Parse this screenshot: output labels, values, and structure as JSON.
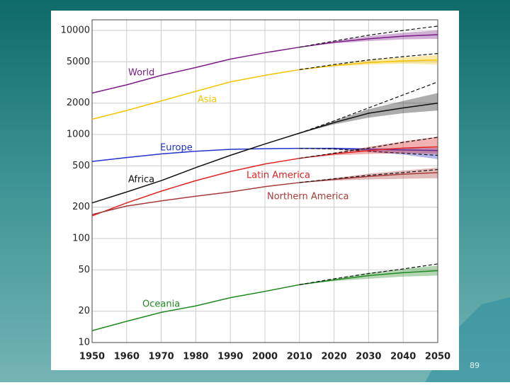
{
  "page_number": "89",
  "chart_data": {
    "type": "line",
    "log_y": true,
    "grid": true,
    "x": [
      1950,
      1960,
      1970,
      1980,
      1990,
      2000,
      2010,
      2020,
      2030,
      2040,
      2050
    ],
    "xlim": [
      1950,
      2050
    ],
    "xticks": [
      1950,
      1960,
      1970,
      1980,
      1990,
      2000,
      2010,
      2020,
      2030,
      2040,
      2050
    ],
    "ylim": [
      10,
      10000
    ],
    "yticks": [
      10,
      20,
      50,
      100,
      200,
      500,
      1000,
      2000,
      5000,
      10000
    ],
    "series": [
      {
        "name": "World",
        "color": "#7b1c86",
        "values": [
          2500,
          3000,
          3700,
          4400,
          5300,
          6100,
          6900,
          7700,
          8300,
          8800,
          9100
        ],
        "dashed": [
          null,
          null,
          null,
          null,
          null,
          null,
          6900,
          7900,
          9000,
          10000,
          11000
        ],
        "low": [
          null,
          null,
          null,
          null,
          null,
          null,
          6900,
          7500,
          7900,
          8200,
          8300
        ],
        "high": [
          null,
          null,
          null,
          null,
          null,
          null,
          6900,
          7900,
          8800,
          9500,
          10000
        ]
      },
      {
        "name": "Asia",
        "color": "#f5c400",
        "values": [
          1400,
          1700,
          2100,
          2600,
          3200,
          3700,
          4200,
          4600,
          4900,
          5100,
          5200
        ],
        "dashed": [
          null,
          null,
          null,
          null,
          null,
          null,
          4200,
          4700,
          5200,
          5600,
          6000
        ],
        "low": [
          null,
          null,
          null,
          null,
          null,
          null,
          4200,
          4500,
          4700,
          4800,
          4700
        ],
        "high": [
          null,
          null,
          null,
          null,
          null,
          null,
          4200,
          4700,
          5200,
          5500,
          5800
        ]
      },
      {
        "name": "Europe",
        "color": "#2233cc",
        "values": [
          550,
          600,
          650,
          690,
          720,
          730,
          735,
          735,
          720,
          710,
          700
        ],
        "dashed": [
          null,
          null,
          null,
          null,
          null,
          null,
          735,
          725,
          690,
          660,
          630
        ],
        "low": [
          null,
          null,
          null,
          null,
          null,
          null,
          735,
          720,
          680,
          640,
          580
        ],
        "high": [
          null,
          null,
          null,
          null,
          null,
          null,
          735,
          745,
          740,
          740,
          740
        ]
      },
      {
        "name": "Africa",
        "color": "#111111",
        "values": [
          220,
          280,
          360,
          480,
          630,
          810,
          1030,
          1300,
          1600,
          1800,
          2000
        ],
        "dashed": [
          null,
          null,
          null,
          null,
          null,
          null,
          1030,
          1350,
          1800,
          2400,
          3200
        ],
        "low": [
          null,
          null,
          null,
          null,
          null,
          null,
          1030,
          1250,
          1450,
          1600,
          1700
        ],
        "high": [
          null,
          null,
          null,
          null,
          null,
          null,
          1030,
          1350,
          1750,
          2100,
          2500
        ]
      },
      {
        "name": "Latin America",
        "color": "#dd2222",
        "values": [
          165,
          220,
          285,
          360,
          440,
          520,
          590,
          650,
          700,
          740,
          760
        ],
        "dashed": [
          null,
          null,
          null,
          null,
          null,
          null,
          590,
          660,
          740,
          840,
          940
        ],
        "low": [
          null,
          null,
          null,
          null,
          null,
          null,
          590,
          630,
          650,
          660,
          650
        ],
        "high": [
          null,
          null,
          null,
          null,
          null,
          null,
          590,
          670,
          760,
          860,
          950
        ]
      },
      {
        "name": "Northern America",
        "color": "#a83a3a",
        "values": [
          170,
          205,
          230,
          255,
          280,
          315,
          345,
          370,
          395,
          415,
          430
        ],
        "dashed": [
          null,
          null,
          null,
          null,
          null,
          null,
          345,
          375,
          405,
          430,
          460
        ],
        "low": [
          null,
          null,
          null,
          null,
          null,
          null,
          345,
          360,
          370,
          375,
          380
        ],
        "high": [
          null,
          null,
          null,
          null,
          null,
          null,
          345,
          380,
          420,
          450,
          480
        ]
      },
      {
        "name": "Oceania",
        "color": "#1f8a1f",
        "values": [
          13,
          16,
          19.5,
          22.5,
          27,
          31,
          36,
          40,
          44,
          47,
          49
        ],
        "dashed": [
          null,
          null,
          null,
          null,
          null,
          null,
          36,
          41,
          46,
          51,
          57
        ],
        "low": [
          null,
          null,
          null,
          null,
          null,
          null,
          36,
          39,
          41,
          43,
          44
        ],
        "high": [
          null,
          null,
          null,
          null,
          null,
          null,
          36,
          41,
          47,
          51,
          55
        ]
      }
    ]
  }
}
